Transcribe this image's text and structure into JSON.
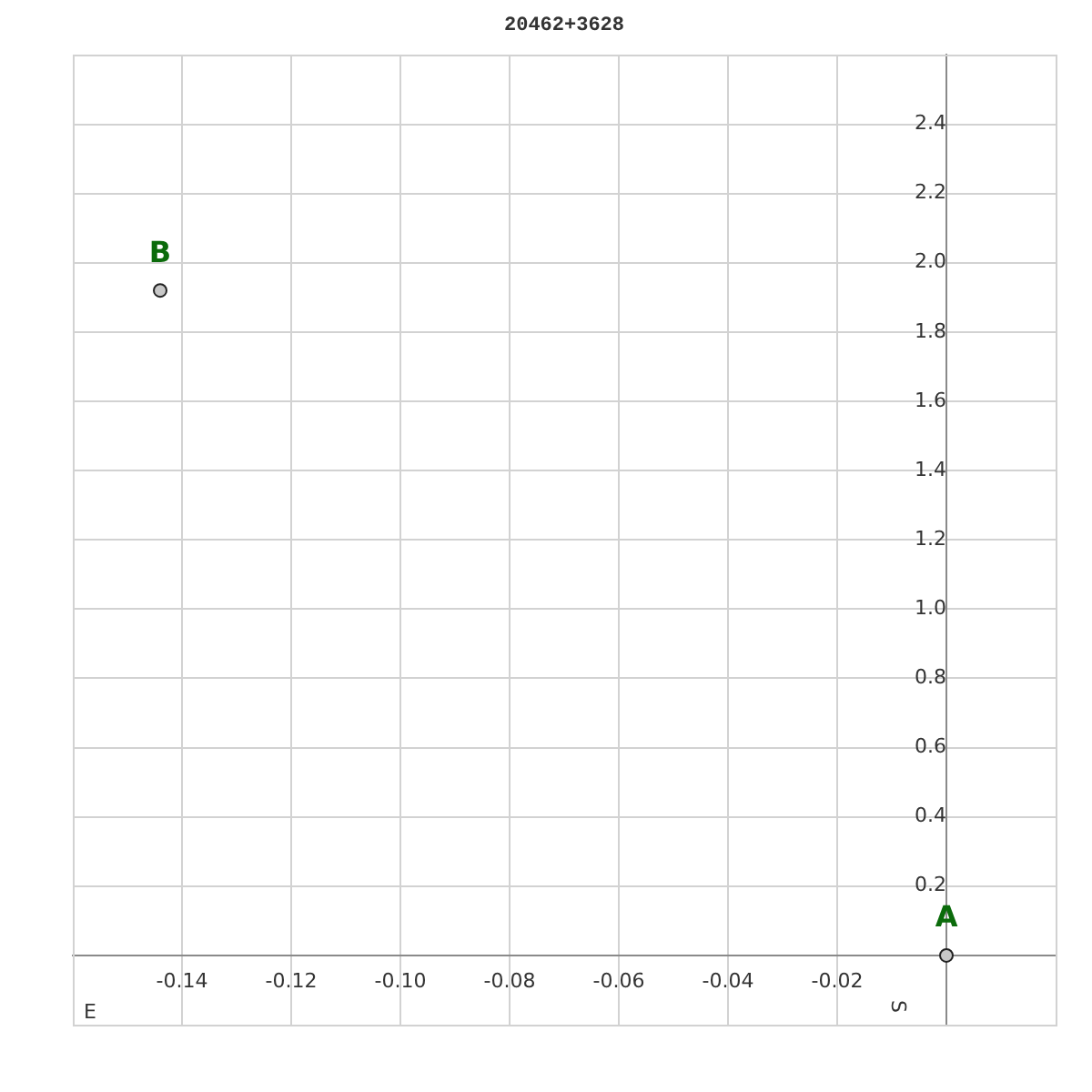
{
  "chart_data": {
    "type": "scatter",
    "title": "20462+3628",
    "xlabel": "E",
    "ylabel": "S",
    "x": [
      0,
      -0.144
    ],
    "values": [
      0,
      1.92
    ],
    "color": "#c8c8c8",
    "marker": "circle",
    "xlim": [
      -0.16,
      0.02
    ],
    "ylim": [
      -0.2,
      2.6
    ],
    "xticks": [
      -0.14,
      -0.12,
      {
        "value": -0.1,
        "label": "-0.10"
      },
      -0.08,
      -0.06,
      -0.04,
      -0.02,
      {
        "value": 0,
        "label": null
      }
    ],
    "yticks": [
      {
        "value": 0,
        "label": null
      },
      0.2,
      0.4,
      0.6,
      0.8,
      {
        "value": 1,
        "label": "1.0"
      },
      1.2,
      1.4,
      1.6,
      1.8,
      {
        "value": 2,
        "label": "2.0"
      },
      2.2,
      2.4
    ],
    "grid": true,
    "annotations": [
      {
        "text": "A",
        "x": 0,
        "y": 0
      },
      {
        "text": "B",
        "x": -0.144,
        "y": 1.92
      }
    ]
  }
}
